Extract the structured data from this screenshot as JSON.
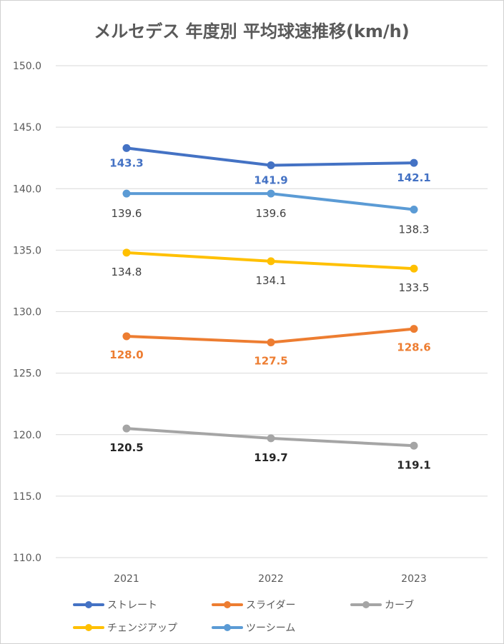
{
  "chart_data": {
    "type": "line",
    "title": "メルセデス 年度別 平均球速推移(km/h)",
    "xlabel": "",
    "ylabel": "",
    "categories": [
      "2021",
      "2022",
      "2023"
    ],
    "ylim": [
      110.0,
      150.0
    ],
    "yticks": [
      "150.0",
      "145.0",
      "140.0",
      "135.0",
      "130.0",
      "125.0",
      "120.0",
      "115.0",
      "110.0"
    ],
    "ytick_values": [
      150,
      145,
      140,
      135,
      130,
      125,
      120,
      115,
      110
    ],
    "grid": true,
    "legend_position": "bottom",
    "series": [
      {
        "name": "ストレート",
        "values": [
          143.3,
          141.9,
          142.1
        ],
        "labels": [
          "143.3",
          "141.9",
          "142.1"
        ],
        "color": "#4472C4",
        "label_color": "#4472C4",
        "label_bold": true
      },
      {
        "name": "スライダー",
        "values": [
          128.0,
          127.5,
          128.6
        ],
        "labels": [
          "128.0",
          "127.5",
          "128.6"
        ],
        "color": "#ED7D31",
        "label_color": "#ED7D31",
        "label_bold": true
      },
      {
        "name": "カーブ",
        "values": [
          120.5,
          119.7,
          119.1
        ],
        "labels": [
          "120.5",
          "119.7",
          "119.1"
        ],
        "color": "#A5A5A5",
        "label_color": "#262626",
        "label_bold": true
      },
      {
        "name": "チェンジアップ",
        "values": [
          134.8,
          134.1,
          133.5
        ],
        "labels": [
          "134.8",
          "134.1",
          "133.5"
        ],
        "color": "#FFC000",
        "label_color": "#404040",
        "label_bold": false
      },
      {
        "name": "ツーシーム",
        "values": [
          139.6,
          139.6,
          138.3
        ],
        "labels": [
          "139.6",
          "139.6",
          "138.3"
        ],
        "color": "#5B9BD5",
        "label_color": "#404040",
        "label_bold": false
      }
    ]
  }
}
